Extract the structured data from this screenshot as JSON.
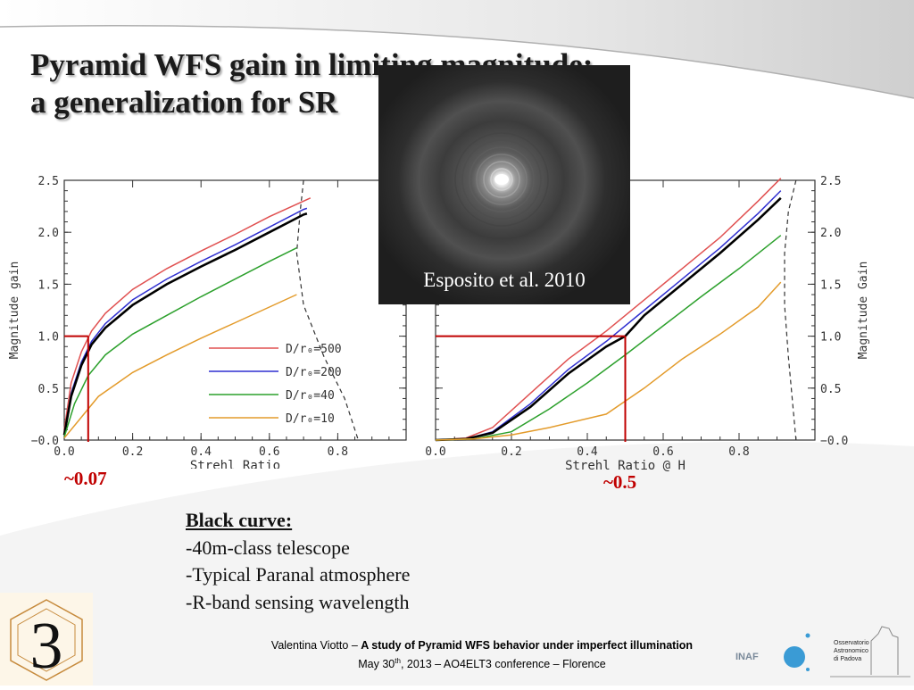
{
  "title": {
    "line1": "Pyramid WFS gain in limiting magnitude:",
    "line2": "a generalization for SR"
  },
  "image_caption": "Esposito et al. 2010",
  "annotations": {
    "left_marker": "~0.07",
    "right_marker": "~0.5"
  },
  "notes": {
    "heading": "Black curve:",
    "items": [
      "-40m-class telescope",
      "-Typical Paranal atmosphere",
      "-R-band sensing wavelength"
    ]
  },
  "footer": {
    "author": "Valentina Viotto",
    "dash": " – ",
    "talk_title": "A study of Pyramid WFS behavior under imperfect illumination",
    "date_pre": "May 30",
    "date_sup": "th",
    "date_post": ", 2013 – AO4ELT3 conference – Florence"
  },
  "logos": {
    "left_numeral": "3",
    "inaf": "INAF",
    "opd_lines": [
      "Osservatorio",
      "Astronomico",
      "di Padova"
    ]
  },
  "colors": {
    "red": "#c00000",
    "black": "#000000",
    "blue": "#2f2fd0",
    "green": "#2ca02c",
    "orange": "#e39b2b",
    "lightred": "#e05050"
  },
  "chart_data": [
    {
      "type": "line",
      "xlabel": "Strehl Ratio",
      "ylabel": "Magnitude gain",
      "xlim": [
        0.0,
        1.0
      ],
      "ylim": [
        0.0,
        2.5
      ],
      "x_ticks": [
        "0.0",
        "0.2",
        "0.4",
        "0.6",
        "0.8"
      ],
      "y_ticks": [
        "−0.0",
        "0.5",
        "1.0",
        "1.5",
        "2.0",
        "2.5"
      ],
      "legend_position": "lower-center",
      "series": [
        {
          "name": "D/r₀=500",
          "color": "#e05050",
          "points": [
            [
              0.0,
              0.1
            ],
            [
              0.02,
              0.55
            ],
            [
              0.05,
              0.85
            ],
            [
              0.08,
              1.05
            ],
            [
              0.12,
              1.22
            ],
            [
              0.2,
              1.45
            ],
            [
              0.3,
              1.65
            ],
            [
              0.4,
              1.82
            ],
            [
              0.5,
              1.98
            ],
            [
              0.6,
              2.15
            ],
            [
              0.7,
              2.3
            ],
            [
              0.72,
              2.33
            ]
          ]
        },
        {
          "name": "D/r₀=200",
          "color": "#2f2fd0",
          "points": [
            [
              0.0,
              0.05
            ],
            [
              0.02,
              0.45
            ],
            [
              0.05,
              0.75
            ],
            [
              0.08,
              0.95
            ],
            [
              0.12,
              1.12
            ],
            [
              0.2,
              1.35
            ],
            [
              0.3,
              1.55
            ],
            [
              0.4,
              1.72
            ],
            [
              0.5,
              1.88
            ],
            [
              0.6,
              2.05
            ],
            [
              0.7,
              2.22
            ],
            [
              0.71,
              2.23
            ]
          ]
        },
        {
          "name": "Black curve",
          "color": "#000000",
          "points": [
            [
              0.0,
              0.05
            ],
            [
              0.02,
              0.42
            ],
            [
              0.05,
              0.72
            ],
            [
              0.08,
              0.92
            ],
            [
              0.12,
              1.08
            ],
            [
              0.2,
              1.3
            ],
            [
              0.3,
              1.5
            ],
            [
              0.4,
              1.67
            ],
            [
              0.5,
              1.83
            ],
            [
              0.6,
              2.0
            ],
            [
              0.7,
              2.17
            ],
            [
              0.71,
              2.18
            ]
          ]
        },
        {
          "name": "D/r₀=40",
          "color": "#2ca02c",
          "points": [
            [
              0.0,
              0.03
            ],
            [
              0.03,
              0.35
            ],
            [
              0.07,
              0.62
            ],
            [
              0.12,
              0.82
            ],
            [
              0.2,
              1.02
            ],
            [
              0.3,
              1.2
            ],
            [
              0.4,
              1.38
            ],
            [
              0.5,
              1.55
            ],
            [
              0.6,
              1.72
            ],
            [
              0.68,
              1.85
            ]
          ]
        },
        {
          "name": "D/r₀=10",
          "color": "#e39b2b",
          "points": [
            [
              0.0,
              0.02
            ],
            [
              0.05,
              0.22
            ],
            [
              0.1,
              0.42
            ],
            [
              0.2,
              0.65
            ],
            [
              0.3,
              0.82
            ],
            [
              0.4,
              0.98
            ],
            [
              0.5,
              1.13
            ],
            [
              0.6,
              1.28
            ],
            [
              0.68,
              1.4
            ]
          ]
        }
      ],
      "limit_curve": [
        [
          0.7,
          2.5
        ],
        [
          0.69,
          2.2
        ],
        [
          0.68,
          1.8
        ],
        [
          0.7,
          1.3
        ],
        [
          0.76,
          0.8
        ],
        [
          0.82,
          0.4
        ],
        [
          0.86,
          0.0
        ]
      ],
      "marker": {
        "x": 0.07,
        "y": 1.0
      }
    },
    {
      "type": "line",
      "xlabel": "Strehl Ratio @ H",
      "ylabel": "Magnitude Gain",
      "xlim": [
        0.0,
        1.0
      ],
      "ylim": [
        0.0,
        2.5
      ],
      "x_ticks": [
        "0.0",
        "0.2",
        "0.4",
        "0.6",
        "0.8"
      ],
      "y_ticks": [
        "−0.0",
        "0.5",
        "1.0",
        "1.5",
        "2.0",
        "2.5"
      ],
      "series": [
        {
          "name": "D/r₀=500",
          "color": "#e05050",
          "points": [
            [
              0.0,
              0.0
            ],
            [
              0.08,
              0.02
            ],
            [
              0.15,
              0.12
            ],
            [
              0.25,
              0.45
            ],
            [
              0.35,
              0.78
            ],
            [
              0.45,
              1.05
            ],
            [
              0.55,
              1.35
            ],
            [
              0.65,
              1.65
            ],
            [
              0.75,
              1.95
            ],
            [
              0.85,
              2.3
            ],
            [
              0.91,
              2.52
            ]
          ]
        },
        {
          "name": "D/r₀=200",
          "color": "#2f2fd0",
          "points": [
            [
              0.0,
              0.0
            ],
            [
              0.08,
              0.01
            ],
            [
              0.15,
              0.08
            ],
            [
              0.25,
              0.35
            ],
            [
              0.35,
              0.68
            ],
            [
              0.45,
              0.95
            ],
            [
              0.55,
              1.25
            ],
            [
              0.65,
              1.55
            ],
            [
              0.75,
              1.85
            ],
            [
              0.85,
              2.18
            ],
            [
              0.91,
              2.4
            ]
          ]
        },
        {
          "name": "Black curve",
          "color": "#000000",
          "points": [
            [
              0.0,
              0.0
            ],
            [
              0.08,
              0.01
            ],
            [
              0.15,
              0.07
            ],
            [
              0.25,
              0.32
            ],
            [
              0.35,
              0.64
            ],
            [
              0.45,
              0.9
            ],
            [
              0.5,
              1.0
            ],
            [
              0.55,
              1.2
            ],
            [
              0.65,
              1.5
            ],
            [
              0.75,
              1.8
            ],
            [
              0.85,
              2.12
            ],
            [
              0.91,
              2.33
            ]
          ]
        },
        {
          "name": "D/r₀=40",
          "color": "#2ca02c",
          "points": [
            [
              0.0,
              0.0
            ],
            [
              0.1,
              0.01
            ],
            [
              0.2,
              0.08
            ],
            [
              0.3,
              0.3
            ],
            [
              0.4,
              0.55
            ],
            [
              0.5,
              0.82
            ],
            [
              0.6,
              1.1
            ],
            [
              0.7,
              1.38
            ],
            [
              0.8,
              1.65
            ],
            [
              0.91,
              1.97
            ]
          ]
        },
        {
          "name": "D/r₀=10",
          "color": "#e39b2b",
          "points": [
            [
              0.0,
              0.0
            ],
            [
              0.1,
              0.01
            ],
            [
              0.2,
              0.05
            ],
            [
              0.3,
              0.12
            ],
            [
              0.45,
              0.25
            ],
            [
              0.55,
              0.5
            ],
            [
              0.65,
              0.78
            ],
            [
              0.75,
              1.02
            ],
            [
              0.85,
              1.28
            ],
            [
              0.91,
              1.52
            ]
          ]
        }
      ],
      "limit_curve": [
        [
          0.95,
          2.5
        ],
        [
          0.93,
          2.2
        ],
        [
          0.92,
          1.8
        ],
        [
          0.92,
          1.3
        ],
        [
          0.93,
          0.8
        ],
        [
          0.95,
          0.0
        ]
      ],
      "marker": {
        "x": 0.5,
        "y": 1.0
      }
    }
  ]
}
